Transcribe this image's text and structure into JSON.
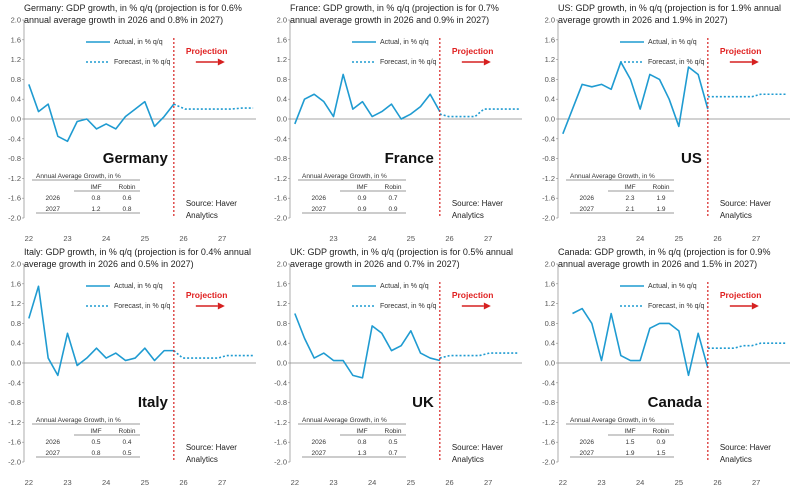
{
  "colors": {
    "series": "#1f9bd1",
    "projection": "#d62020",
    "axis": "#888888",
    "text": "#222222"
  },
  "common": {
    "legend_actual": "Actual, in % q/q",
    "legend_forecast": "Forecast, in % q/q",
    "projection_label": "Projection",
    "source_line1": "Source: Haver",
    "source_line2": "Analytics",
    "table_title": "Annual Average Growth, in %",
    "table_col_imf": "IMF",
    "table_col_robin": "Robin",
    "table_year1": "2026",
    "table_year2": "2027"
  },
  "chart_data": [
    {
      "type": "line",
      "country": "Germany",
      "title": "Germany: GDP growth, in % q/q (projection is for 0.6% annual average growth in 2026 and 0.8% in 2027)",
      "ylim": [
        -2.0,
        2.0
      ],
      "yticks": [
        "2.0",
        "1.6",
        "1.2",
        "0.8",
        "0.4",
        "0.0",
        "-0.4",
        "-0.8",
        "-1.2",
        "-1.6",
        "-2.0"
      ],
      "xticks": [
        "22",
        "23",
        "24",
        "25",
        "26",
        "27"
      ],
      "actual": [
        0.7,
        0.15,
        0.3,
        -0.35,
        -0.45,
        -0.05,
        0.0,
        -0.2,
        -0.1,
        -0.2,
        0.05,
        0.2,
        0.35,
        -0.15,
        0.05,
        0.3
      ],
      "forecast": [
        0.3,
        0.2,
        0.2,
        0.2,
        0.2,
        0.2,
        0.22,
        0.22
      ],
      "table": {
        "imf": [
          "0.8",
          "1.2"
        ],
        "robin": [
          "0.6",
          "0.8"
        ]
      }
    },
    {
      "type": "line",
      "country": "France",
      "title": "France: GDP growth, in % q/q (projection is for 0.7% annual average growth in 2026 and 0.9% in 2027)",
      "ylim": [
        -2.0,
        2.0
      ],
      "yticks": [
        "2.0",
        "1.6",
        "1.2",
        "0.8",
        "0.4",
        "0.0",
        "-0.4",
        "-0.8",
        "-1.2",
        "-1.6",
        "-2.0"
      ],
      "xticks": [
        "23",
        "24",
        "25",
        "26",
        "27"
      ],
      "actual": [
        -0.1,
        0.4,
        0.5,
        0.35,
        0.05,
        0.9,
        0.2,
        0.35,
        0.05,
        0.15,
        0.3,
        0.0,
        0.1,
        0.25,
        0.5,
        0.15
      ],
      "forecast": [
        0.1,
        0.05,
        0.05,
        0.05,
        0.05,
        0.2,
        0.2,
        0.2,
        0.2,
        0.2
      ],
      "table": {
        "imf": [
          "0.9",
          "0.9"
        ],
        "robin": [
          "0.7",
          "0.9"
        ]
      }
    },
    {
      "type": "line",
      "country": "US",
      "title": "US: GDP growth, in % q/q (projection is for 1.9% annual average growth in 2026 and 1.9% in 2027)",
      "ylim": [
        -2.0,
        2.0
      ],
      "yticks": [
        "2.0",
        "1.6",
        "1.2",
        "0.8",
        "0.4",
        "0.0",
        "-0.4",
        "-0.8",
        "-1.2",
        "-1.6",
        "-2.0"
      ],
      "xticks": [
        "23",
        "24",
        "25",
        "26",
        "27"
      ],
      "actual": [
        -0.3,
        0.2,
        0.7,
        0.65,
        0.7,
        0.6,
        1.15,
        0.8,
        0.2,
        0.9,
        0.8,
        0.4,
        -0.15,
        1.05,
        0.9,
        0.2
      ],
      "forecast": [
        0.45,
        0.45,
        0.45,
        0.45,
        0.45,
        0.45,
        0.5,
        0.5,
        0.5,
        0.5
      ],
      "table": {
        "imf": [
          "2.3",
          "2.1"
        ],
        "robin": [
          "1.9",
          "1.9"
        ]
      }
    },
    {
      "type": "line",
      "country": "Italy",
      "title": "Italy: GDP growth, in % q/q (projection is for 0.4% annual average growth in 2026 and 0.5% in 2027)",
      "ylim": [
        -2.0,
        2.0
      ],
      "yticks": [
        "2.0",
        "1.6",
        "1.2",
        "0.8",
        "0.4",
        "0.0",
        "-0.4",
        "-0.8",
        "-1.2",
        "-1.6",
        "-2.0"
      ],
      "xticks": [
        "22",
        "23",
        "24",
        "25",
        "26",
        "27"
      ],
      "actual": [
        0.9,
        1.55,
        0.1,
        -0.25,
        0.6,
        -0.05,
        0.1,
        0.3,
        0.1,
        0.2,
        0.05,
        0.1,
        0.3,
        0.05,
        0.25,
        0.25
      ],
      "forecast": [
        0.25,
        0.1,
        0.1,
        0.1,
        0.1,
        0.1,
        0.15,
        0.15,
        0.15,
        0.15
      ],
      "table": {
        "imf": [
          "0.5",
          "0.8"
        ],
        "robin": [
          "0.4",
          "0.5"
        ]
      }
    },
    {
      "type": "line",
      "country": "UK",
      "title": "UK: GDP growth, in % q/q (projection is for 0.5% annual average growth in 2026 and 0.7% in 2027)",
      "ylim": [
        -2.0,
        2.0
      ],
      "yticks": [
        "2.0",
        "1.6",
        "1.2",
        "0.8",
        "0.4",
        "0.0",
        "-0.4",
        "-0.8",
        "-1.2",
        "-1.6",
        "-2.0"
      ],
      "xticks": [
        "22",
        "23",
        "24",
        "25",
        "26",
        "27"
      ],
      "actual": [
        1.0,
        0.5,
        0.1,
        0.2,
        0.05,
        0.05,
        -0.25,
        -0.3,
        0.75,
        0.6,
        0.25,
        0.35,
        0.65,
        0.2,
        0.1,
        0.05
      ],
      "forecast": [
        0.1,
        0.15,
        0.15,
        0.15,
        0.15,
        0.2,
        0.2,
        0.2,
        0.2
      ],
      "table": {
        "imf": [
          "0.8",
          "1.3"
        ],
        "robin": [
          "0.5",
          "0.7"
        ]
      }
    },
    {
      "type": "line",
      "country": "Canada",
      "title": "Canada: GDP growth, in % q/q (projection is for 0.9% annual average growth in 2026 and 1.5% in 2027)",
      "ylim": [
        -2.0,
        2.0
      ],
      "yticks": [
        "2.0",
        "1.6",
        "1.2",
        "0.8",
        "0.4",
        "0.0",
        "-0.4",
        "-0.8",
        "-1.2",
        "-1.6",
        "-2.0"
      ],
      "xticks": [
        "22",
        "23",
        "24",
        "25",
        "26",
        "27"
      ],
      "actual": [
        1.0,
        1.1,
        0.8,
        0.05,
        1.0,
        0.15,
        0.05,
        0.05,
        0.7,
        0.8,
        0.8,
        0.65,
        -0.25,
        0.6,
        -0.1
      ],
      "forecast": [
        0.3,
        0.3,
        0.3,
        0.3,
        0.35,
        0.35,
        0.4,
        0.4,
        0.4,
        0.4
      ],
      "table": {
        "imf": [
          "1.5",
          "1.9"
        ],
        "robin": [
          "0.9",
          "1.5"
        ]
      }
    }
  ]
}
